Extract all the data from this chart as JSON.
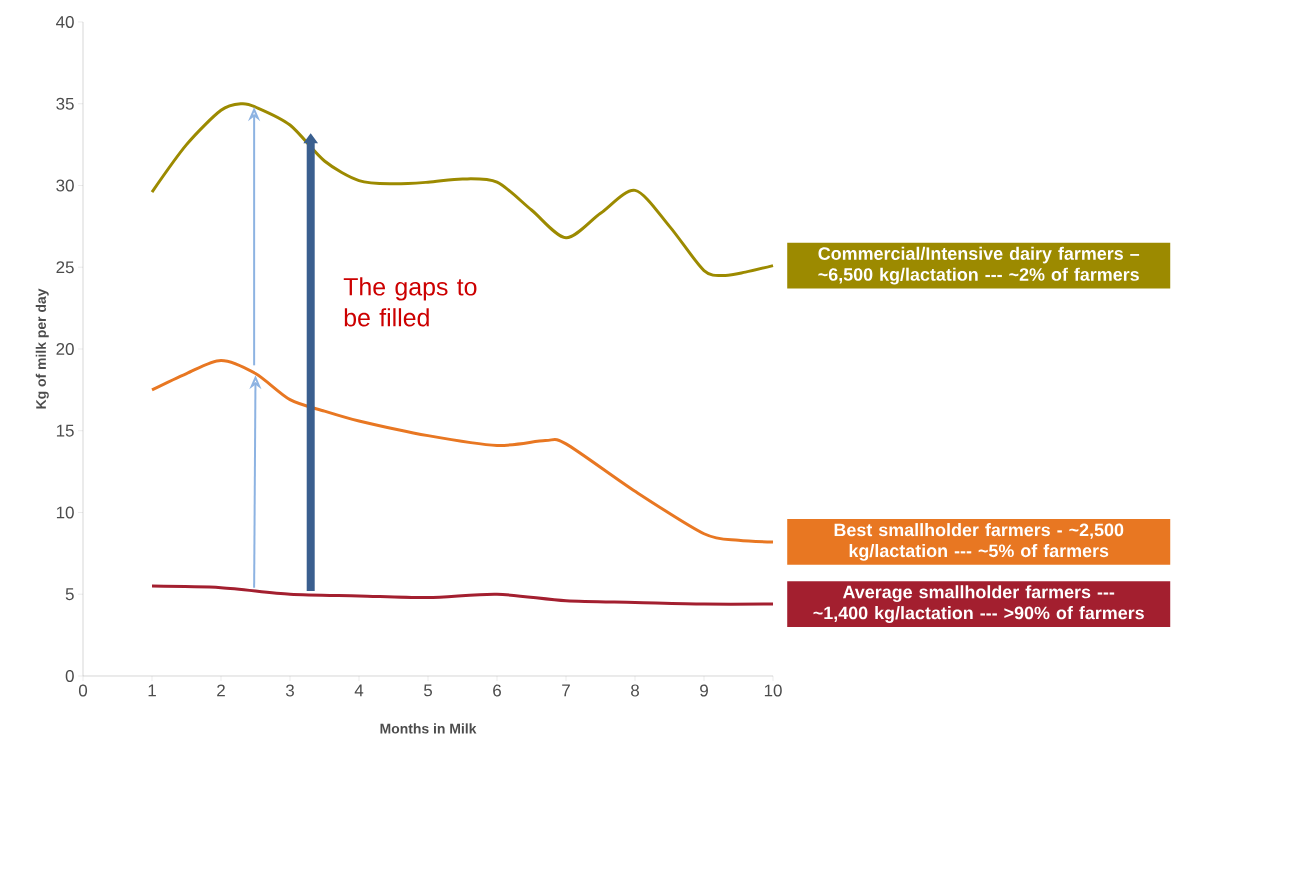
{
  "chart_data": {
    "type": "line",
    "xlabel": "Months in Milk",
    "ylabel": "Kg of milk per day",
    "xlim": [
      0,
      10
    ],
    "xticks": [
      0,
      1,
      2,
      3,
      4,
      5,
      6,
      7,
      8,
      9,
      10
    ],
    "ylim": [
      0,
      40
    ],
    "yticks": [
      0,
      5,
      10,
      15,
      20,
      25,
      30,
      35,
      40
    ],
    "grid": false,
    "marker": "none",
    "line_style": "solid",
    "annotations": [
      "The gaps to be filled"
    ],
    "series": [
      {
        "name": "Commercial/Intensive dairy farmers – ~6,500 kg/lactation --- ~2% of farmers",
        "color": "#9c8a00",
        "x": [
          1,
          1.5,
          2,
          2.3,
          2.5,
          3,
          3.5,
          4,
          4.5,
          5,
          5.5,
          6,
          6.5,
          7,
          7.5,
          8,
          8.5,
          9,
          9.3,
          9.6,
          10
        ],
        "values": [
          29.6,
          32.5,
          34.6,
          35,
          34.8,
          33.7,
          31.5,
          30.3,
          30.1,
          30.2,
          30.4,
          30.2,
          28.5,
          26.8,
          28.3,
          29.7,
          27.5,
          24.8,
          24.5,
          24.7,
          25.1
        ]
      },
      {
        "name": "Best smallholder farmers - ~2,500 kg/lactation --- ~5% of farmers",
        "color": "#e87722",
        "x": [
          1,
          1.5,
          2,
          2.5,
          3,
          3.5,
          4,
          5,
          6,
          6.7,
          7,
          8,
          9,
          9.5,
          10
        ],
        "values": [
          17.5,
          18.5,
          19.3,
          18.5,
          16.9,
          16.2,
          15.6,
          14.7,
          14.1,
          14.4,
          14.2,
          11.3,
          8.7,
          8.3,
          8.2
        ]
      },
      {
        "name": "Average smallholder farmers --- ~1,400 kg/lactation --- >90% of farmers",
        "color": "#a31f2f",
        "x": [
          1,
          2,
          3,
          4,
          5,
          6,
          7,
          8,
          9,
          10
        ],
        "values": [
          5.5,
          5.4,
          5.0,
          4.9,
          4.8,
          5.0,
          4.6,
          4.5,
          4.4,
          4.4
        ]
      }
    ]
  }
}
